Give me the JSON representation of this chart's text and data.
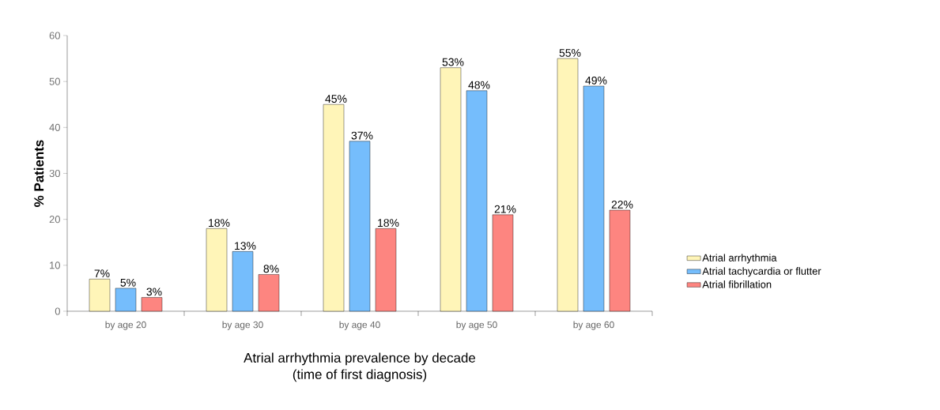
{
  "chart_data": {
    "type": "bar",
    "xlabel": "Atrial arrhythmia prevalence by decade\n(time of first diagnosis)",
    "ylabel": "%  Patients",
    "categories": [
      "by age 20",
      "by age 30",
      "by age 40",
      "by age 50",
      "by age 60"
    ],
    "series": [
      {
        "name": "Atrial arrhythmia",
        "color": "#fff5b8",
        "values": [
          7,
          18,
          45,
          53,
          55
        ],
        "value_labels": [
          "7%",
          "18%",
          "45%",
          "53%",
          "55%"
        ]
      },
      {
        "name": "Atrial tachycardia or flutter",
        "color": "#75bdfc",
        "values": [
          5,
          13,
          37,
          48,
          49
        ],
        "value_labels": [
          "5%",
          "13%",
          "37%",
          "48%",
          "49%"
        ]
      },
      {
        "name": "Atrial fibrillation",
        "color": "#fd8580",
        "values": [
          3,
          8,
          18,
          21,
          22
        ],
        "value_labels": [
          "3%",
          "8%",
          "18%",
          "21%",
          "22%"
        ]
      }
    ],
    "ylim": [
      0,
      60
    ],
    "yticks": [
      0,
      10,
      20,
      30,
      40,
      50,
      60
    ],
    "grid": false,
    "legend": "right"
  }
}
